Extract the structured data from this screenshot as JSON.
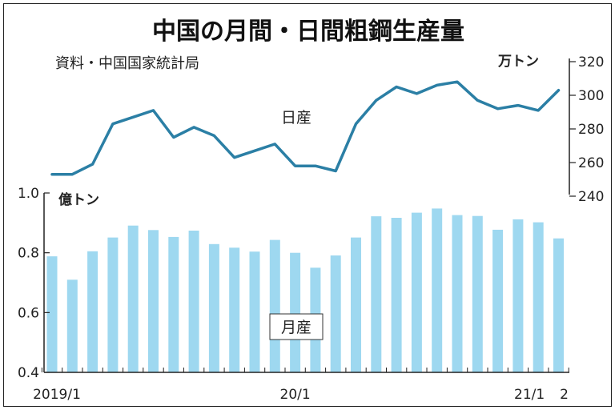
{
  "chart_data": [
    {
      "type": "line",
      "title": "中国の月間・日間粗鋼生産量",
      "source": "資料・中国国家統計局",
      "series_label": "日産",
      "unit": "万トン",
      "ylim": [
        240,
        320
      ],
      "yticks": [
        "320",
        "300",
        "280",
        "260",
        "240"
      ],
      "y_axis_side": "right",
      "color": "#2b7fa5",
      "values": [
        253,
        253,
        259,
        283,
        287,
        291,
        275,
        281,
        276,
        263,
        267,
        271,
        258,
        258,
        255,
        283,
        297,
        305,
        301,
        306,
        308,
        297,
        292,
        294,
        291,
        303
      ]
    },
    {
      "type": "bar",
      "series_label": "月産",
      "unit": "億トン",
      "ylim": [
        0.4,
        1.0
      ],
      "yticks": [
        "1.0",
        "0.8",
        "0.6",
        "0.4"
      ],
      "y_axis_side": "left",
      "color": "#9ed8f0",
      "x_tick_labels": [
        "2019/1",
        "20/1",
        "21/1",
        "2"
      ],
      "values": [
        0.788,
        0.71,
        0.805,
        0.851,
        0.891,
        0.876,
        0.853,
        0.874,
        0.829,
        0.817,
        0.804,
        0.843,
        0.8,
        0.75,
        0.791,
        0.851,
        0.922,
        0.917,
        0.934,
        0.948,
        0.926,
        0.923,
        0.877,
        0.912,
        0.902,
        0.848
      ]
    }
  ]
}
